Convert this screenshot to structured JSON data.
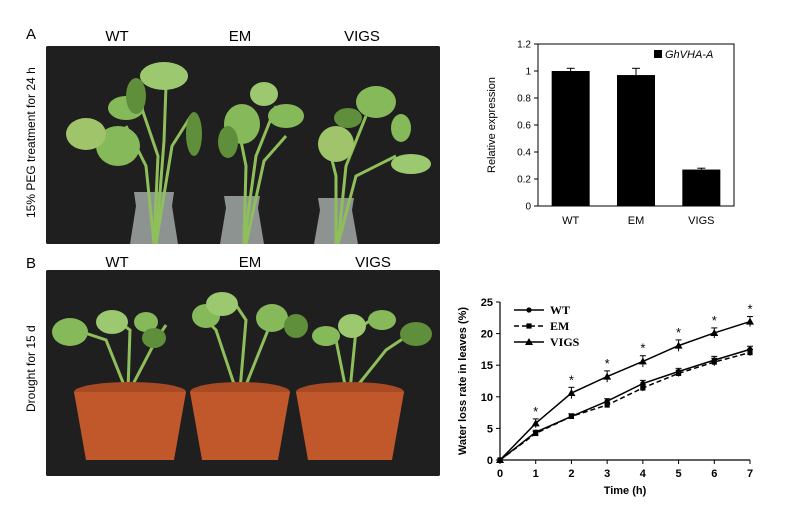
{
  "panel_a": {
    "letter": "A",
    "side_label": "15% PEG treatment for 24 h",
    "photo_labels": [
      "WT",
      "EM",
      "VIGS"
    ]
  },
  "panel_b": {
    "letter": "B",
    "side_label": "Drought for 15 d",
    "photo_labels": [
      "WT",
      "EM",
      "VIGS"
    ]
  },
  "colors": {
    "photo_background": "#1f1f1f",
    "leaf": "#7fb24a",
    "pot": "#c1582c",
    "bar_fill": "#000000"
  },
  "chart_data": [
    {
      "type": "bar",
      "categories": [
        "WT",
        "EM",
        "VIGS"
      ],
      "values": [
        1.0,
        0.97,
        0.27
      ],
      "errors": [
        0.02,
        0.05,
        0.01
      ],
      "ylabel": "Relative expression",
      "ylim": [
        0,
        1.2
      ],
      "yticks": [
        "0",
        "0.2",
        "0.4",
        "0.6",
        "0.8",
        "1",
        "1.2"
      ],
      "legend": [
        "GhVHA-A"
      ],
      "legend_placement": "top-right"
    },
    {
      "type": "line",
      "x": [
        0,
        1,
        2,
        3,
        4,
        5,
        6,
        7
      ],
      "xticks": [
        "0",
        "1",
        "2",
        "3",
        "4",
        "5",
        "6",
        "7"
      ],
      "yticks": [
        "0",
        "5",
        "10",
        "15",
        "20",
        "25"
      ],
      "xlabel": "Time (h)",
      "ylabel": "Water loss rate in leaves (%)",
      "xlim": [
        0,
        7
      ],
      "ylim": [
        0,
        25
      ],
      "legend_placement": "top-left",
      "series": [
        {
          "name": "WT",
          "values": [
            0,
            4.4,
            6.9,
            9.3,
            12.1,
            14.0,
            15.8,
            17.5
          ],
          "errors": [
            0,
            0.3,
            0.4,
            0.4,
            0.5,
            0.5,
            0.6,
            0.5
          ],
          "style": "solid-circle"
        },
        {
          "name": "EM",
          "values": [
            0,
            4.2,
            6.9,
            8.7,
            11.4,
            13.7,
            15.5,
            17.0
          ],
          "errors": [
            0,
            0.3,
            0.4,
            0.4,
            0.5,
            0.5,
            0.6,
            0.5
          ],
          "style": "dashed-square"
        },
        {
          "name": "VIGS",
          "values": [
            0,
            5.8,
            10.6,
            13.2,
            15.6,
            18.1,
            20.1,
            21.9
          ],
          "errors": [
            0,
            0.7,
            0.9,
            0.9,
            0.9,
            0.9,
            0.8,
            0.8
          ],
          "style": "solid-triangle"
        }
      ],
      "annotations": [
        "*",
        "*",
        "*",
        "*",
        "*",
        "*",
        "*"
      ]
    }
  ]
}
